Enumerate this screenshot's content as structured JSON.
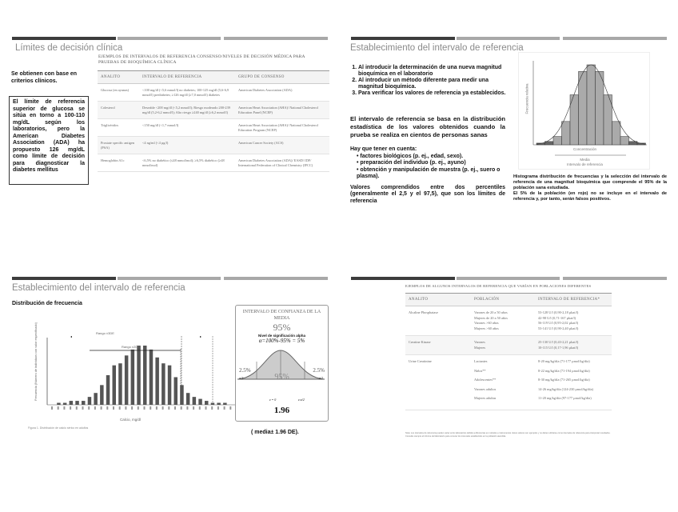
{
  "slide1": {
    "title": "Límites de decisión clínica",
    "intro": "Se obtienen con base en criterios clínicos.",
    "box": "El límite de referencia superior de glucosa se sitúa en torno a 100-110 mg/dL según los laboratorios, pero la American Diabetes Association (ADA) ha propuesto 126 mg/dL como límite de decisión para diagnosticar la diabetes mellitus",
    "table_caption": "EJEMPLOS DE INTERVALOS DE REFERENCIA CONSENSO/NIVELES DE DECISIÓN MÉDICA PARA PRUEBAS DE BIOQUÍMICA CLÍNICA",
    "headers": [
      "ANALITO",
      "INTERVALO DE REFERENCIA",
      "GRUPO DE CONSENSO"
    ],
    "rows": [
      [
        "Glucosa (en ayunas)",
        "<100 mg/dl (<5,6 mmol/l) no diabetes; 100-125 mg/dl (5,6-6,9 mmol/l) prediabetes; ≥126 mg/dl (≥7,0 mmol/l) diabetes",
        "American Diabetes Association (ADA)"
      ],
      [
        "Colesterol",
        "Deseable <200 mg/dl (<5,2 mmol/l); Riesgo moderado 200-239 mg/dl (5,2-6,2 mmol/l); Alto riesgo ≥240 mg/dl (≥6,2 mmol/l)",
        "American Heart Association (AHA)/ National Cholesterol Education Panel (NCEP)"
      ],
      [
        "Triglicéridos",
        "<150 mg/dl (<1,7 mmol/l)",
        "American Heart Association (AHA)/ National Cholesterol Education Program (NCEP)"
      ],
      [
        "Prostate specific antigen (PSA)",
        "<4 ng/ml (<4 µg/l)",
        "American Cancer Society (ACS)"
      ],
      [
        "Hemoglobin A1c",
        "<6,5% no diabético (≤48 mmol/mol); ≥6,5% diabético (≥48 mmol/mol)",
        "American Diabetes Association (ADA)/ EASD/ IDF/ International Federation of Clinical Chemistry (IFCC)"
      ]
    ]
  },
  "slide2": {
    "title": "Establecimiento del intervalo de referencia",
    "list": [
      "Al introducir la determinación de una nueva magnitud bioquímica en el laboratorio",
      "Al introducir un método diferente para medir una magnitud bioquímica.",
      "Para verificar los valores de referencia ya establecidos."
    ],
    "paragraph": "El intervalo de referencia se basa en la distribución estadística de los valores obtenidos cuando la prueba se realiza en cientos de personas sanas",
    "consider_title": "Hay que tener en cuenta:",
    "consider": [
      "factores biológicos (p. ej., edad, sexo).",
      "preparación del individuo (p. ej., ayuno)",
      "obtención y manipulación de muestra (p. ej., suero o plasma)."
    ],
    "percentiles": "Valores comprendidos entre dos percentiles (generalmente el 2,5 y el 97,5), que son los límites de referencia",
    "figure": {
      "ylabel": "Frecuencia relativa",
      "xlabel": "Concentración",
      "mean_label": "Media",
      "interval_label": "Intervalo de referencia",
      "bar_values": [
        1,
        2,
        5,
        14,
        30,
        44,
        48,
        44,
        30,
        14,
        5,
        2,
        1
      ]
    },
    "caption": "Histograma distribución de frecuencias y la selección del intervalo de referencia de una magnitud bioquímica que comprende el 95% de la población sana estudiada.",
    "caption2": "El 5% de la población (en rojo) no se incluye en el intervalo de referencia y, por tanto, serán falsos positivos."
  },
  "slide3": {
    "title": "Establecimiento del intervalo de referencia",
    "subtitle": "Distribución de frecuencia",
    "figure": {
      "ylabel": "Frecuencia (Número de individuos con valor especificado)",
      "xlabel": "Calcio, mg/dl",
      "range1": "Rango ±3DE",
      "range2": "Rango ±2DE",
      "caption": "Figura 1. Distribución de calcio sérico en adultos",
      "bar_values": [
        0,
        1,
        1,
        2,
        2,
        2,
        4,
        6,
        10,
        15,
        20,
        21,
        25,
        28,
        30,
        30,
        28,
        24,
        21,
        20,
        14,
        10,
        6,
        4,
        3,
        2,
        1,
        1,
        1,
        0
      ]
    },
    "ci": {
      "title": "INTERVALO DE CONFIANZA DE LA MEDIA",
      "pct": "95%",
      "alpha_label": "Nivel de significación alpha",
      "alpha_eq": "α=100%-95% = 5%",
      "left_tail": "2.5%",
      "right_tail": "2.5%",
      "tail_sym": "α/2",
      "center": "95%",
      "z0": "z = 0",
      "zcrit": "z α/2",
      "value": "1.96"
    },
    "note": "( media± 1.96 DE)."
  },
  "slide4": {
    "table_caption": "EJEMPLOS DE ALGUNOS INTERVALOS DE REFERENCIA QUE VARÍAN EN POBLACIONES DIFERENTES",
    "headers": [
      "ANALITO",
      "POBLACIÓN",
      "INTERVALO DE REFERENCIA*"
    ],
    "rows": [
      {
        "analyte": "Alcaline Phosphatase",
        "pops": [
          "Varones de 20 a 50 años",
          "Mujeres de 20 a 50 años",
          "Varones >60 años",
          "Mujeres >60 años"
        ],
        "vals": [
          "53-128 U/l (0,90-2,18 µkat/l)",
          "42-98 U/l (0,71-167 µkat/l)",
          "56-119 U/l (0,95-2,02 µkat/l)",
          "53-141 U/l (0,90-2,40 µkat/l)"
        ]
      },
      {
        "analyte": "Creatine Kinase",
        "pops": [
          "Varones",
          "Mujeres"
        ],
        "vals": [
          "25-130 U/l (0,43-2,21 µkat/l)",
          "10-115 U/l (0,17-1,96 µkat/l)"
        ]
      },
      {
        "analyte": "Urine Creatinine",
        "pops": [
          "Lactantes",
          "Niños**",
          "Adolescentes**",
          "Varones adultos",
          "Mujeres adultas"
        ],
        "vals": [
          "8-20 mg/kg/día (71-177 µmol/kg/día)",
          "8-22 mg/kg/día (71-194 µmol/kg/día)",
          "8-30 mg/kg/día (71-265 µmol/kg/día)",
          "14-26 mg/kg/día (124-230 µmol/kg/día)",
          "11-20 mg/kg/día (97-177 µmol/kg/día)"
        ]
      }
    ],
    "footnote": "Nota: Los intervalos de referencia pueden variar entre laboratorios debido a diferencias en métodos e instrumentos. Estos valores son ejemplos y no deben utilizarse como intervalos de referencia para interpretar resultados. Consulte siempre el informe del laboratorio para conocer los intervalos establecidos en la población atendida."
  }
}
